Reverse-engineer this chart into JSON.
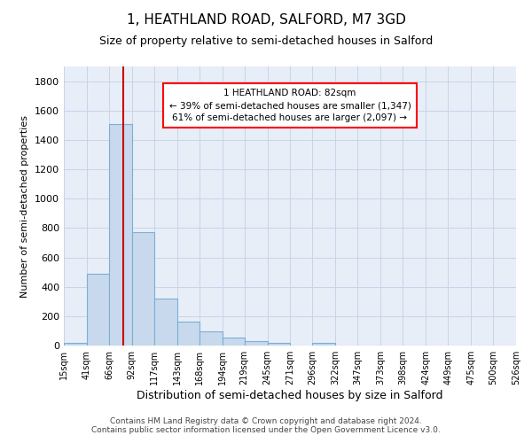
{
  "title": "1, HEATHLAND ROAD, SALFORD, M7 3GD",
  "subtitle": "Size of property relative to semi-detached houses in Salford",
  "xlabel": "Distribution of semi-detached houses by size in Salford",
  "ylabel": "Number of semi-detached properties",
  "footnote1": "Contains HM Land Registry data © Crown copyright and database right 2024.",
  "footnote2": "Contains public sector information licensed under the Open Government Licence v3.0.",
  "bin_edges": [
    15,
    41,
    66,
    92,
    117,
    143,
    168,
    194,
    219,
    245,
    271,
    296,
    322,
    347,
    373,
    398,
    424,
    449,
    475,
    500,
    526
  ],
  "bar_heights": [
    20,
    490,
    1510,
    770,
    320,
    160,
    95,
    55,
    30,
    20,
    0,
    20,
    0,
    0,
    0,
    0,
    0,
    0,
    0,
    0
  ],
  "bar_color": "#c8d9ee",
  "bar_edge_color": "#7bafd4",
  "grid_color": "#c8d4e8",
  "background_color": "#e8eef8",
  "property_size": 82,
  "annotation_line1": "1 HEATHLAND ROAD: 82sqm",
  "annotation_line2": "← 39% of semi-detached houses are smaller (1,347)",
  "annotation_line3": "61% of semi-detached houses are larger (2,097) →",
  "vline_color": "#cc0000",
  "ylim": [
    0,
    1900
  ],
  "yticks": [
    0,
    200,
    400,
    600,
    800,
    1000,
    1200,
    1400,
    1600,
    1800
  ],
  "title_fontsize": 11,
  "subtitle_fontsize": 9,
  "xlabel_fontsize": 9,
  "ylabel_fontsize": 8,
  "xtick_fontsize": 7,
  "ytick_fontsize": 8,
  "footnote_fontsize": 6.5
}
